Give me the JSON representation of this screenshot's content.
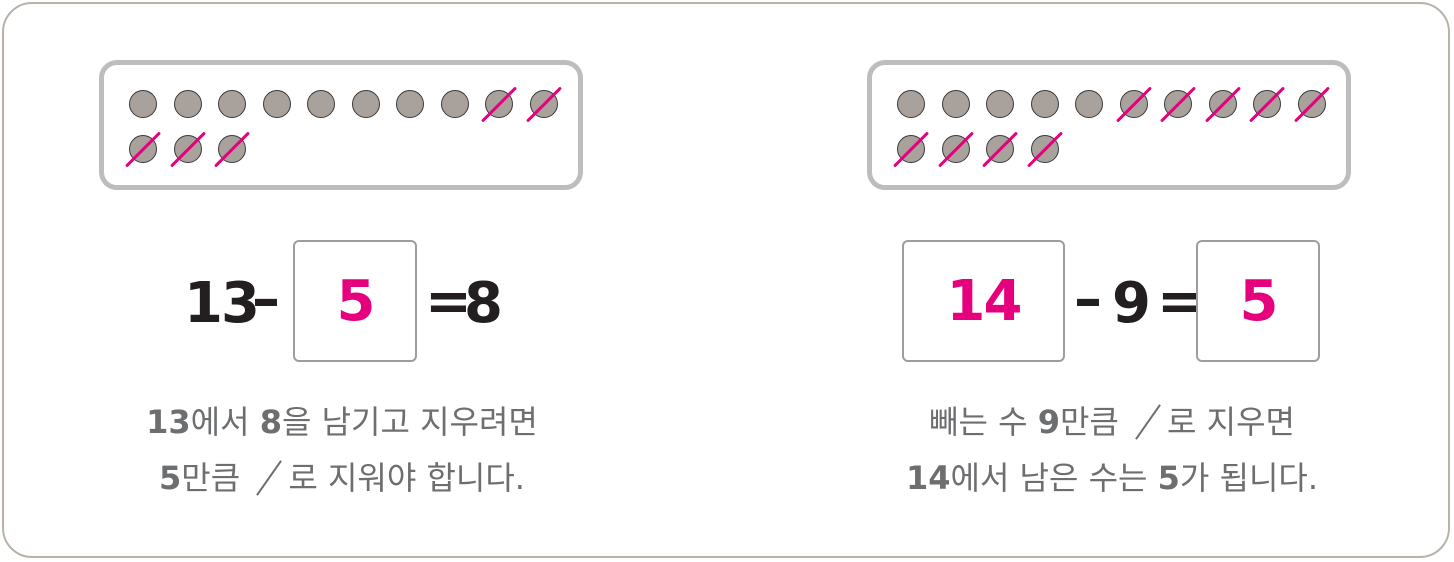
{
  "colors": {
    "accent": "#e5007e",
    "dot": "#a8a19c",
    "text": "#231f20",
    "explain": "#6d6e70"
  },
  "left": {
    "dots_total": 13,
    "dots_crossed": 5,
    "equation": {
      "a": "13",
      "minus": "–",
      "answer": "5",
      "equals": "=",
      "result": "8"
    },
    "explain": {
      "line1": {
        "n1": "13",
        "t1": "에서 ",
        "n2": "8",
        "t2": "을 남기고 지우려면"
      },
      "line2": {
        "n1": "5",
        "t1": "만큼 ",
        "t2": "로 지워야 합니다."
      }
    }
  },
  "right": {
    "dots_total": 14,
    "dots_crossed": 9,
    "equation": {
      "answer1": "14",
      "minus": "–",
      "b": "9",
      "equals": "=",
      "answer2": "5"
    },
    "explain": {
      "line1": {
        "t1": "빼는 수 ",
        "n1": "9",
        "t2": "만큼 ",
        "t3": "로 지우면"
      },
      "line2": {
        "n1": "14",
        "t1": "에서 남은 수는 ",
        "n2": "5",
        "t2": "가 됩니다."
      }
    }
  }
}
